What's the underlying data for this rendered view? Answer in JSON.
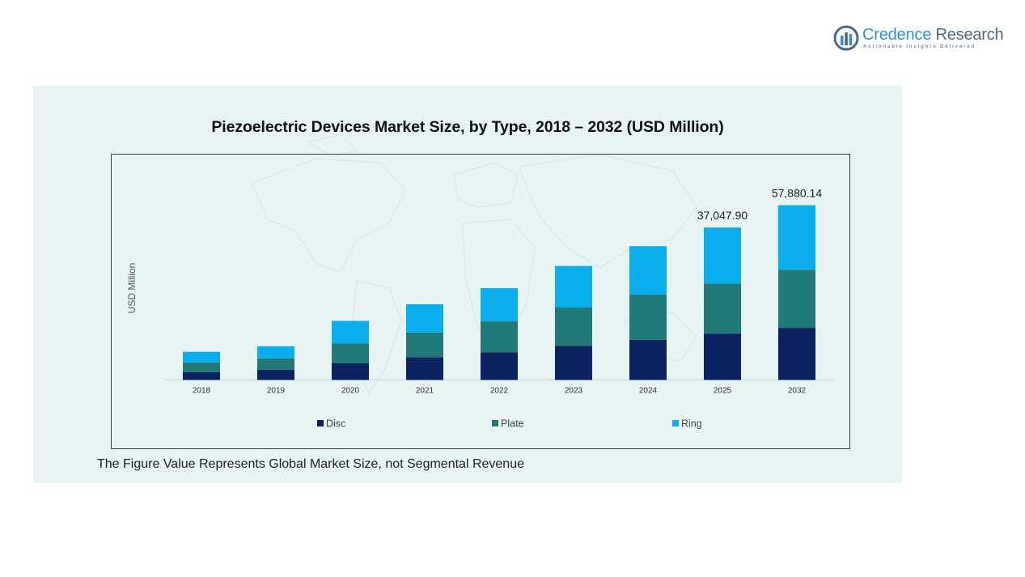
{
  "brand": {
    "name_part1": "Credence",
    "name_part2": "Research",
    "tagline": "Actionable Insights Delivered"
  },
  "footnote": "The Figure Value Represents Global Market Size, not Segmental Revenue",
  "chart_data": {
    "type": "bar",
    "stacked": true,
    "title": "Piezoelectric Devices Market Size, by Type, 2018 – 2032 (USD Million)",
    "xlabel": "",
    "ylabel": "USD Million",
    "categories": [
      "2018",
      "2019",
      "2020",
      "2021",
      "2022",
      "2023",
      "2024",
      "2025",
      "2032"
    ],
    "series": [
      {
        "name": "Disc",
        "color": "#0d2260",
        "values": [
          1700,
          2200,
          3600,
          4900,
          6000,
          7400,
          8700,
          10000,
          11300
        ]
      },
      {
        "name": "Plate",
        "color": "#227a78",
        "values": [
          2100,
          2500,
          4300,
          5400,
          6700,
          8300,
          9800,
          10900,
          12600
        ]
      },
      {
        "name": "Ring",
        "color": "#0aaeec",
        "values": [
          2300,
          2600,
          4900,
          6100,
          7200,
          9000,
          10500,
          12147.9,
          13980.14
        ]
      }
    ],
    "totals_labels": [
      {
        "category": "2025",
        "label": "37,047.90"
      },
      {
        "category": "2032",
        "label": "57,880.14"
      }
    ],
    "ylim": [
      0,
      40000
    ],
    "y_axis_ticks_shown": false,
    "grid": false,
    "legend_position": "bottom",
    "background_color": "#e6f4f3"
  }
}
